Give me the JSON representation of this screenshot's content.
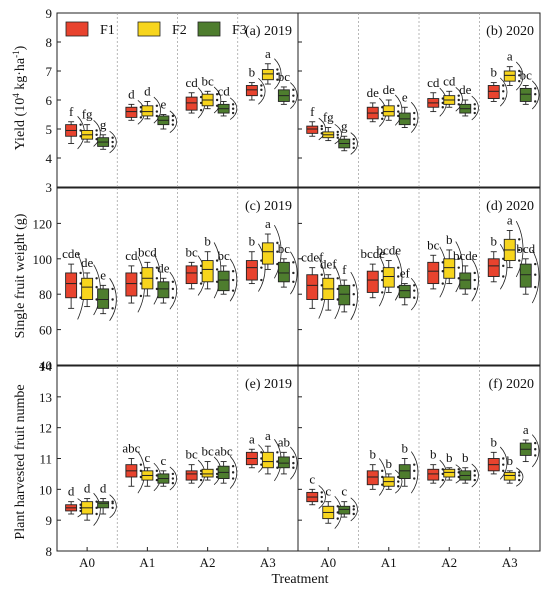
{
  "figure": {
    "xlabel": "Treatment",
    "legend": [
      {
        "name": "F1",
        "color": "#e8432e"
      },
      {
        "name": "F2",
        "color": "#f7d51d"
      },
      {
        "name": "F3",
        "color": "#4e7d2e"
      }
    ],
    "treatments": [
      "A0",
      "A1",
      "A2",
      "A3"
    ],
    "colors": {
      "F1": "#e8432e",
      "F2": "#f7d51d",
      "F3": "#4e7d2e"
    }
  },
  "chart_data": [
    {
      "type": "box",
      "panel": "(a) 2019",
      "ylabel_main": "Yield (10",
      "ylabel_sup": "4",
      "ylabel_tail": " kg·ha",
      "ylabel_sup2": "-1",
      "ylabel_end": ")",
      "ylim": [
        3,
        9
      ],
      "yticks": [
        3,
        4,
        5,
        6,
        7,
        8,
        9
      ],
      "categories": [
        "A0",
        "A1",
        "A2",
        "A3"
      ],
      "series": [
        {
          "name": "F1",
          "boxes": [
            [
              4.5,
              4.75,
              4.95,
              5.15,
              5.25
            ],
            [
              5.3,
              5.4,
              5.6,
              5.75,
              5.85
            ],
            [
              5.55,
              5.65,
              5.9,
              6.1,
              6.25
            ],
            [
              6.0,
              6.15,
              6.35,
              6.5,
              6.6
            ]
          ],
          "letters": [
            "f",
            "d",
            "cd",
            "b"
          ]
        },
        {
          "name": "F2",
          "boxes": [
            [
              4.55,
              4.65,
              4.8,
              4.95,
              5.15
            ],
            [
              5.35,
              5.45,
              5.6,
              5.8,
              5.95
            ],
            [
              5.7,
              5.8,
              6.0,
              6.2,
              6.3
            ],
            [
              6.55,
              6.7,
              6.9,
              7.05,
              7.25
            ]
          ],
          "letters": [
            "fg",
            "d",
            "bc",
            "a"
          ]
        },
        {
          "name": "F3",
          "boxes": [
            [
              4.3,
              4.4,
              4.55,
              4.7,
              4.8
            ],
            [
              5.0,
              5.15,
              5.3,
              5.45,
              5.5
            ],
            [
              5.45,
              5.55,
              5.7,
              5.85,
              5.95
            ],
            [
              5.85,
              5.95,
              6.15,
              6.35,
              6.45
            ]
          ],
          "letters": [
            "g",
            "e",
            "cd",
            "bc"
          ]
        }
      ]
    },
    {
      "type": "box",
      "panel": "(b) 2020",
      "ylim": [
        3,
        9
      ],
      "yticks": [
        3,
        4,
        5,
        6,
        7,
        8,
        9
      ],
      "categories": [
        "A0",
        "A1",
        "A2",
        "A3"
      ],
      "series": [
        {
          "name": "F1",
          "boxes": [
            [
              4.75,
              4.85,
              5.0,
              5.1,
              5.25
            ],
            [
              5.25,
              5.35,
              5.55,
              5.75,
              5.9
            ],
            [
              5.6,
              5.75,
              5.9,
              6.05,
              6.25
            ],
            [
              5.95,
              6.05,
              6.3,
              6.5,
              6.6
            ]
          ],
          "letters": [
            "f",
            "de",
            "cd",
            "b"
          ]
        },
        {
          "name": "F2",
          "boxes": [
            [
              4.6,
              4.7,
              4.8,
              4.9,
              5.05
            ],
            [
              5.3,
              5.45,
              5.6,
              5.8,
              6.0
            ],
            [
              5.75,
              5.85,
              6.0,
              6.15,
              6.3
            ],
            [
              6.5,
              6.65,
              6.85,
              7.0,
              7.15
            ]
          ],
          "letters": [
            "fg",
            "de",
            "cd",
            "a"
          ]
        },
        {
          "name": "F3",
          "boxes": [
            [
              4.25,
              4.35,
              4.5,
              4.65,
              4.75
            ],
            [
              5.05,
              5.15,
              5.35,
              5.55,
              5.75
            ],
            [
              5.45,
              5.55,
              5.7,
              5.85,
              6.0
            ],
            [
              5.85,
              5.95,
              6.2,
              6.4,
              6.5
            ]
          ],
          "letters": [
            "g",
            "e",
            "de",
            "bc"
          ]
        }
      ]
    },
    {
      "type": "box",
      "panel": "(c) 2019",
      "ylabel_main": "Single fruit weight (g)",
      "ylim": [
        40,
        140
      ],
      "yticks": [
        40,
        60,
        80,
        100,
        120
      ],
      "categories": [
        "A0",
        "A1",
        "A2",
        "A3"
      ],
      "series": [
        {
          "name": "F1",
          "boxes": [
            [
              72,
              78,
              86,
              92,
              97
            ],
            [
              75,
              79,
              86,
              92,
              96
            ],
            [
              83,
              86,
              92,
              96,
              98
            ],
            [
              86,
              88,
              95,
              99,
              104
            ]
          ],
          "letters": [
            "cde",
            "cd",
            "bc",
            "b"
          ]
        },
        {
          "name": "F2",
          "boxes": [
            [
              73,
              77,
              84,
              89,
              92
            ],
            [
              79,
              83,
              89,
              95,
              98
            ],
            [
              83,
              87,
              94,
              99,
              104
            ],
            [
              94,
              97,
              104,
              109,
              114
            ]
          ],
          "letters": [
            "de",
            "bcd",
            "b",
            "a"
          ]
        },
        {
          "name": "F3",
          "boxes": [
            [
              69,
              72,
              77,
              83,
              85
            ],
            [
              75,
              78,
              83,
              87,
              89
            ],
            [
              80,
              82,
              88,
              93,
              96
            ],
            [
              84,
              87,
              92,
              98,
              100
            ]
          ],
          "letters": [
            "e",
            "de",
            "bc",
            "bc"
          ]
        }
      ]
    },
    {
      "type": "box",
      "panel": "(d) 2020",
      "ylim": [
        40,
        140
      ],
      "yticks": [
        40,
        60,
        80,
        100,
        120
      ],
      "categories": [
        "A0",
        "A1",
        "A2",
        "A3"
      ],
      "series": [
        {
          "name": "F1",
          "boxes": [
            [
              72,
              77,
              85,
              91,
              95
            ],
            [
              78,
              81,
              88,
              93,
              97
            ],
            [
              83,
              86,
              93,
              98,
              102
            ],
            [
              87,
              90,
              96,
              100,
              104
            ]
          ],
          "letters": [
            "cdef",
            "bcde",
            "bc",
            "b"
          ]
        },
        {
          "name": "F2",
          "boxes": [
            [
              71,
              77,
              83,
              89,
              91
            ],
            [
              81,
              84,
              90,
              95,
              99
            ],
            [
              86,
              89,
              95,
              100,
              105
            ],
            [
              95,
              99,
              105,
              111,
              116
            ]
          ],
          "letters": [
            "def",
            "bcde",
            "b",
            "a"
          ]
        },
        {
          "name": "F3",
          "boxes": [
            [
              70,
              74,
              80,
              85,
              88
            ],
            [
              74,
              78,
              82,
              85,
              86
            ],
            [
              80,
              83,
              88,
              92,
              96
            ],
            [
              80,
              84,
              91,
              97,
              100
            ]
          ],
          "letters": [
            "f",
            "ef",
            "bcde",
            "bcd"
          ]
        }
      ]
    },
    {
      "type": "box",
      "panel": "(e) 2019",
      "ylabel_main": "Plant harvested fruit numbe",
      "ylim": [
        8,
        14
      ],
      "yticks": [
        8,
        9,
        10,
        11,
        12,
        13,
        14
      ],
      "categories": [
        "A0",
        "A1",
        "A2",
        "A3"
      ],
      "series": [
        {
          "name": "F1",
          "boxes": [
            [
              9.2,
              9.3,
              9.4,
              9.5,
              9.6
            ],
            [
              10.1,
              10.4,
              10.6,
              10.8,
              11.0
            ],
            [
              10.2,
              10.3,
              10.5,
              10.6,
              10.8
            ],
            [
              10.7,
              10.8,
              11.0,
              11.2,
              11.3
            ]
          ],
          "letters": [
            "d",
            "abc",
            "bc",
            "a"
          ]
        },
        {
          "name": "F2",
          "boxes": [
            [
              9.0,
              9.2,
              9.4,
              9.6,
              9.7
            ],
            [
              10.1,
              10.3,
              10.45,
              10.6,
              10.7
            ],
            [
              10.3,
              10.4,
              10.5,
              10.65,
              10.9
            ],
            [
              10.5,
              10.7,
              10.9,
              11.2,
              11.4
            ]
          ],
          "letters": [
            "d",
            "c",
            "bc",
            "a"
          ]
        },
        {
          "name": "F3",
          "boxes": [
            [
              9.2,
              9.4,
              9.55,
              9.6,
              9.7
            ],
            [
              10.1,
              10.2,
              10.35,
              10.5,
              10.6
            ],
            [
              10.2,
              10.35,
              10.55,
              10.75,
              10.9
            ],
            [
              10.5,
              10.7,
              10.85,
              11.05,
              11.2
            ]
          ],
          "letters": [
            "d",
            "c",
            "abc",
            "ab"
          ]
        }
      ]
    },
    {
      "type": "box",
      "panel": "(f) 2020",
      "ylim": [
        8,
        14
      ],
      "yticks": [
        8,
        9,
        10,
        11,
        12,
        13,
        14
      ],
      "categories": [
        "A0",
        "A1",
        "A2",
        "A3"
      ],
      "series": [
        {
          "name": "F1",
          "boxes": [
            [
              9.5,
              9.6,
              9.75,
              9.9,
              10.0
            ],
            [
              10.0,
              10.15,
              10.4,
              10.6,
              10.8
            ],
            [
              10.2,
              10.3,
              10.5,
              10.65,
              10.8
            ],
            [
              10.5,
              10.6,
              10.8,
              11.0,
              11.2
            ]
          ],
          "letters": [
            "c",
            "b",
            "b",
            "b"
          ]
        },
        {
          "name": "F2",
          "boxes": [
            [
              8.9,
              9.05,
              9.25,
              9.45,
              9.6
            ],
            [
              10.0,
              10.1,
              10.25,
              10.4,
              10.5
            ],
            [
              10.3,
              10.4,
              10.55,
              10.65,
              10.7
            ],
            [
              10.2,
              10.3,
              10.45,
              10.55,
              10.6
            ]
          ],
          "letters": [
            "c",
            "b",
            "b",
            "b"
          ]
        },
        {
          "name": "F3",
          "boxes": [
            [
              9.1,
              9.2,
              9.35,
              9.45,
              9.6
            ],
            [
              10.1,
              10.35,
              10.6,
              10.8,
              11.0
            ],
            [
              10.2,
              10.3,
              10.45,
              10.6,
              10.7
            ],
            [
              10.9,
              11.1,
              11.3,
              11.5,
              11.6
            ]
          ],
          "letters": [
            "c",
            "b",
            "b",
            "a"
          ]
        }
      ]
    }
  ]
}
